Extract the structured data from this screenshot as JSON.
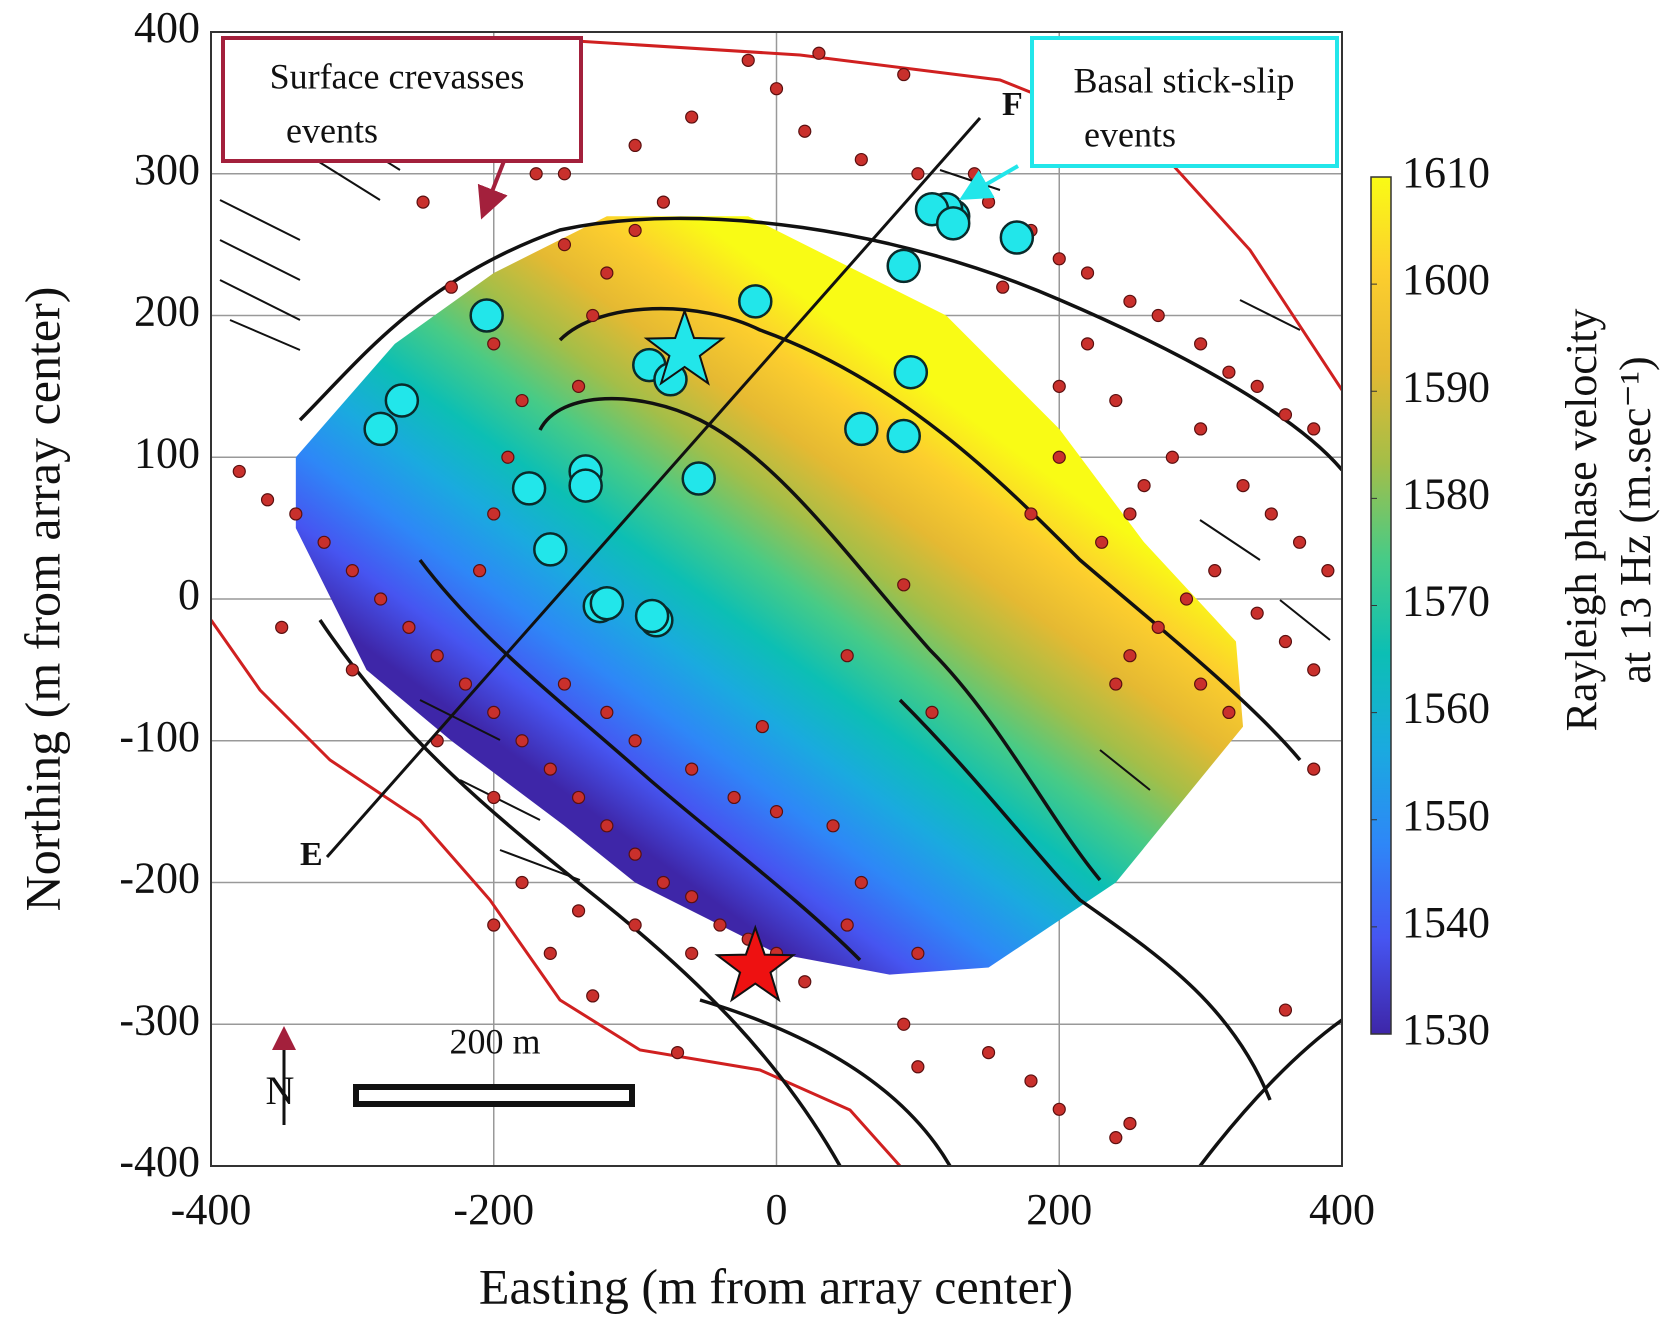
{
  "chart_data": {
    "type": "scatter",
    "xlabel": "Easting (m from array center)",
    "ylabel": "Northing (m from array center)",
    "xlim": [
      -400,
      400
    ],
    "ylim": [
      -400,
      400
    ],
    "xticks": [
      -400,
      -200,
      0,
      200,
      400
    ],
    "yticks": [
      -400,
      -300,
      -200,
      -100,
      0,
      100,
      200,
      300,
      400
    ],
    "grid": true,
    "series": [
      {
        "color": "#c9302c",
        "edge": "#5a1010",
        "x": [
          -150,
          -100,
          -60,
          0,
          20,
          60,
          100,
          150,
          180,
          200,
          220,
          250,
          270,
          300,
          320,
          340,
          360,
          380,
          300,
          280,
          260,
          250,
          230,
          330,
          350,
          370,
          390,
          310,
          290,
          270,
          250,
          340,
          360,
          380,
          200,
          220,
          160,
          240,
          200,
          180,
          300,
          320,
          140,
          -20,
          30,
          90,
          -230,
          -200,
          -180,
          -190,
          -150,
          -120,
          -130,
          -100,
          -80,
          -170,
          -200,
          -250,
          -140,
          -200,
          -210,
          -380,
          -360,
          -320,
          -300,
          -340,
          -280,
          -260,
          -240,
          -220,
          -200,
          -180,
          -160,
          -140,
          -120,
          -100,
          -80,
          -60,
          -40,
          -20,
          0,
          20,
          -60,
          -100,
          -140,
          -160,
          -130,
          -180,
          -200,
          -240,
          -150,
          -120,
          -100,
          -60,
          -30,
          0,
          40,
          60,
          100,
          -10,
          50,
          90,
          100,
          150,
          -70,
          180,
          200,
          240,
          250,
          -200,
          -300,
          -350,
          360,
          380,
          240,
          110,
          90,
          50
        ],
        "y": [
          300,
          320,
          340,
          360,
          330,
          310,
          300,
          280,
          260,
          240,
          230,
          210,
          200,
          180,
          160,
          150,
          130,
          120,
          120,
          100,
          80,
          60,
          40,
          80,
          60,
          40,
          20,
          20,
          0,
          -20,
          -40,
          -10,
          -30,
          -50,
          150,
          180,
          220,
          140,
          100,
          60,
          -60,
          -80,
          300,
          380,
          385,
          370,
          220,
          180,
          140,
          100,
          250,
          230,
          200,
          260,
          280,
          300,
          330,
          280,
          150,
          60,
          20,
          90,
          70,
          40,
          20,
          60,
          0,
          -20,
          -40,
          -60,
          -80,
          -100,
          -120,
          -140,
          -160,
          -180,
          -200,
          -210,
          -230,
          -240,
          -250,
          -270,
          -250,
          -230,
          -220,
          -250,
          -280,
          -200,
          -140,
          -100,
          -60,
          -80,
          -100,
          -120,
          -140,
          -150,
          -160,
          -200,
          -250,
          -90,
          -230,
          -300,
          -330,
          -320,
          -320,
          -340,
          -360,
          -380,
          -370,
          -230,
          -50,
          -20,
          -290,
          -120,
          -60,
          -80,
          10,
          -40
        ]
      },
      {
        "color": "#22e6ea",
        "edge": "#0a2a2a",
        "x": [
          125,
          120,
          170,
          90,
          -15,
          -205,
          -90,
          -75,
          95,
          -265,
          -280,
          60,
          90,
          -135,
          -135,
          -55,
          -175,
          -160,
          -125,
          -120,
          -85,
          -88,
          110,
          125
        ],
        "y": [
          270,
          275,
          255,
          235,
          210,
          200,
          165,
          155,
          160,
          140,
          120,
          120,
          115,
          90,
          80,
          85,
          78,
          35,
          -5,
          -3,
          -15,
          -12,
          275,
          265
        ]
      }
    ],
    "stars": [
      {
        "x": -65,
        "y": 175,
        "color": "#22e6ea"
      },
      {
        "x": -15,
        "y": -260,
        "color": "#ee1111"
      }
    ],
    "annotations": [
      {
        "lines": [
          "Surface crevasses",
          "events"
        ],
        "color": "#a3203c"
      },
      {
        "lines": [
          "Basal stick-slip",
          "events"
        ],
        "color": "#22e6ea"
      }
    ],
    "profile": {
      "start": "E",
      "end": "F"
    },
    "scale_bar": "200 m",
    "north": "N",
    "colorbar": {
      "lim": [
        1530,
        1610
      ],
      "ticks": [
        1530,
        1540,
        1550,
        1560,
        1570,
        1580,
        1590,
        1600,
        1610
      ],
      "label_lines": [
        "Rayleigh phase velocity",
        "at 13 Hz (m.sec⁻¹)"
      ],
      "colormap": [
        "#3e26a8",
        "#4655f1",
        "#2e87f7",
        "#1aaadf",
        "#0cbfb4",
        "#48cb86",
        "#a4be48",
        "#e5b932",
        "#fcce2e",
        "#f9fb15"
      ]
    }
  }
}
